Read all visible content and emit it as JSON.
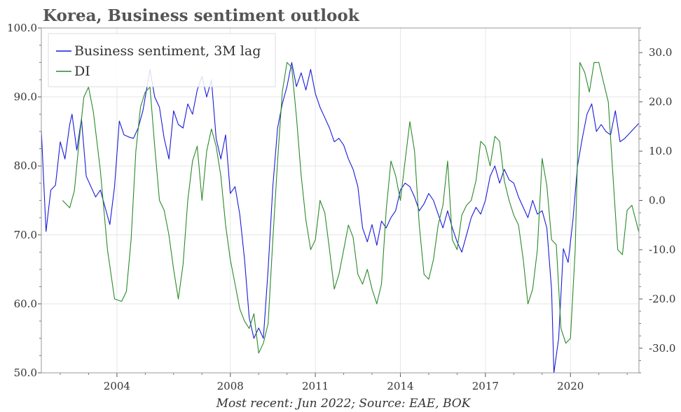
{
  "chart_data": {
    "type": "line",
    "title": "Korea, Business sentiment outlook",
    "footnote": "Most recent: Jun 2022; Source: EAE, BOK",
    "x_range": [
      "2001-05",
      "2022-06"
    ],
    "x_ticks": [
      "2004",
      "2008",
      "2011",
      "2014",
      "2017",
      "2020"
    ],
    "y_left": {
      "range": [
        50,
        100
      ],
      "ticks": [
        "100.0",
        "90.0",
        "80.0",
        "70.0",
        "60.0",
        "50.0"
      ]
    },
    "y_right": {
      "range": [
        -35,
        35
      ],
      "ticks": [
        "30.0",
        "20.0",
        "10.0",
        "0.0",
        "-10.0",
        "-20.0",
        "-30.0"
      ]
    },
    "grid": true,
    "legend_position": "top-left",
    "colors": {
      "business_sentiment": "#1a1adb",
      "di": "#2a8a2a"
    },
    "series": [
      {
        "name": "Business sentiment, 3M lag",
        "axis": "left",
        "color": "#1a1adb",
        "points": [
          [
            "2001-05",
            85.2
          ],
          [
            "2001-07",
            70.5
          ],
          [
            "2001-09",
            76.5
          ],
          [
            "2001-11",
            77.2
          ],
          [
            "2002-01",
            83.5
          ],
          [
            "2002-03",
            81.0
          ],
          [
            "2002-05",
            86.0
          ],
          [
            "2002-06",
            87.5
          ],
          [
            "2002-08",
            82.3
          ],
          [
            "2002-10",
            86.8
          ],
          [
            "2002-12",
            78.5
          ],
          [
            "2003-02",
            77.0
          ],
          [
            "2003-04",
            75.5
          ],
          [
            "2003-06",
            76.5
          ],
          [
            "2003-08",
            74.0
          ],
          [
            "2003-10",
            71.5
          ],
          [
            "2003-12",
            77.0
          ],
          [
            "2004-02",
            86.5
          ],
          [
            "2004-04",
            84.5
          ],
          [
            "2004-06",
            84.2
          ],
          [
            "2004-08",
            84.0
          ],
          [
            "2004-10",
            85.5
          ],
          [
            "2004-12",
            88.0
          ],
          [
            "2005-03",
            94.0
          ],
          [
            "2005-05",
            90.0
          ],
          [
            "2005-07",
            88.5
          ],
          [
            "2005-09",
            84.0
          ],
          [
            "2005-11",
            81.0
          ],
          [
            "2006-01",
            88.0
          ],
          [
            "2006-03",
            86.0
          ],
          [
            "2006-05",
            85.5
          ],
          [
            "2006-07",
            89.0
          ],
          [
            "2006-09",
            87.5
          ],
          [
            "2006-11",
            91.0
          ],
          [
            "2007-01",
            93.0
          ],
          [
            "2007-03",
            90.0
          ],
          [
            "2007-05",
            92.5
          ],
          [
            "2007-07",
            84.0
          ],
          [
            "2007-09",
            81.0
          ],
          [
            "2007-11",
            84.5
          ],
          [
            "2008-01",
            76.0
          ],
          [
            "2008-03",
            77.0
          ],
          [
            "2008-05",
            73.0
          ],
          [
            "2008-07",
            66.5
          ],
          [
            "2008-09",
            58.0
          ],
          [
            "2008-11",
            55.0
          ],
          [
            "2009-01",
            56.5
          ],
          [
            "2009-03",
            55.0
          ],
          [
            "2009-05",
            65.0
          ],
          [
            "2009-07",
            77.0
          ],
          [
            "2009-09",
            85.5
          ],
          [
            "2009-11",
            89.0
          ],
          [
            "2010-01",
            91.5
          ],
          [
            "2010-03",
            95.0
          ],
          [
            "2010-05",
            91.5
          ],
          [
            "2010-07",
            93.5
          ],
          [
            "2010-09",
            91.0
          ],
          [
            "2010-11",
            94.0
          ],
          [
            "2011-01",
            90.5
          ],
          [
            "2011-03",
            88.5
          ],
          [
            "2011-05",
            87.0
          ],
          [
            "2011-07",
            85.5
          ],
          [
            "2011-09",
            83.5
          ],
          [
            "2011-11",
            84.0
          ],
          [
            "2012-01",
            83.0
          ],
          [
            "2012-03",
            81.0
          ],
          [
            "2012-05",
            79.5
          ],
          [
            "2012-07",
            77.0
          ],
          [
            "2012-09",
            71.0
          ],
          [
            "2012-11",
            69.0
          ],
          [
            "2013-01",
            71.5
          ],
          [
            "2013-03",
            68.5
          ],
          [
            "2013-05",
            72.0
          ],
          [
            "2013-07",
            71.0
          ],
          [
            "2013-09",
            72.5
          ],
          [
            "2013-11",
            73.5
          ],
          [
            "2014-01",
            76.5
          ],
          [
            "2014-03",
            77.5
          ],
          [
            "2014-05",
            77.0
          ],
          [
            "2014-07",
            75.5
          ],
          [
            "2014-09",
            73.5
          ],
          [
            "2014-11",
            74.5
          ],
          [
            "2015-01",
            76.0
          ],
          [
            "2015-03",
            75.0
          ],
          [
            "2015-05",
            73.0
          ],
          [
            "2015-07",
            71.0
          ],
          [
            "2015-09",
            73.5
          ],
          [
            "2015-11",
            71.0
          ],
          [
            "2016-01",
            69.0
          ],
          [
            "2016-03",
            67.5
          ],
          [
            "2016-05",
            70.0
          ],
          [
            "2016-07",
            72.5
          ],
          [
            "2016-09",
            74.0
          ],
          [
            "2016-11",
            73.0
          ],
          [
            "2017-01",
            75.0
          ],
          [
            "2017-03",
            78.5
          ],
          [
            "2017-05",
            80.0
          ],
          [
            "2017-07",
            77.5
          ],
          [
            "2017-09",
            79.5
          ],
          [
            "2017-11",
            78.0
          ],
          [
            "2018-01",
            77.5
          ],
          [
            "2018-03",
            75.5
          ],
          [
            "2018-05",
            74.0
          ],
          [
            "2018-07",
            72.5
          ],
          [
            "2018-09",
            75.0
          ],
          [
            "2018-11",
            73.0
          ],
          [
            "2019-01",
            73.5
          ],
          [
            "2019-03",
            71.0
          ],
          [
            "2019-05",
            62.0
          ],
          [
            "2019-06",
            50.0
          ],
          [
            "2019-08",
            55.0
          ],
          [
            "2019-10",
            68.0
          ],
          [
            "2019-12",
            66.0
          ],
          [
            "2020-02",
            72.0
          ],
          [
            "2020-04",
            80.0
          ],
          [
            "2020-06",
            84.0
          ],
          [
            "2020-08",
            87.5
          ],
          [
            "2020-10",
            89.0
          ],
          [
            "2020-12",
            85.0
          ],
          [
            "2021-02",
            86.0
          ],
          [
            "2021-04",
            85.0
          ],
          [
            "2021-06",
            84.5
          ],
          [
            "2021-08",
            88.0
          ],
          [
            "2021-10",
            83.5
          ],
          [
            "2021-12",
            84.0
          ],
          [
            "2022-06",
            86.2
          ]
        ]
      },
      {
        "name": "DI",
        "axis": "right",
        "color": "#2a8a2a",
        "points": [
          [
            "2002-02",
            0.0
          ],
          [
            "2002-05",
            -1.5
          ],
          [
            "2002-07",
            2.0
          ],
          [
            "2002-09",
            12.0
          ],
          [
            "2002-11",
            21.0
          ],
          [
            "2003-01",
            23.0
          ],
          [
            "2003-03",
            18.0
          ],
          [
            "2003-06",
            6.0
          ],
          [
            "2003-09",
            -10.0
          ],
          [
            "2003-12",
            -20.0
          ],
          [
            "2004-03",
            -20.5
          ],
          [
            "2004-05",
            -18.5
          ],
          [
            "2004-07",
            -8.0
          ],
          [
            "2004-09",
            10.0
          ],
          [
            "2004-11",
            19.0
          ],
          [
            "2005-01",
            22.0
          ],
          [
            "2005-03",
            23.0
          ],
          [
            "2005-05",
            11.0
          ],
          [
            "2005-07",
            0.0
          ],
          [
            "2005-09",
            -2.0
          ],
          [
            "2005-11",
            -7.0
          ],
          [
            "2006-01",
            -14.0
          ],
          [
            "2006-03",
            -20.0
          ],
          [
            "2006-05",
            -13.0
          ],
          [
            "2006-07",
            0.0
          ],
          [
            "2006-09",
            8.0
          ],
          [
            "2006-11",
            11.0
          ],
          [
            "2007-01",
            0.0
          ],
          [
            "2007-03",
            10.0
          ],
          [
            "2007-05",
            14.5
          ],
          [
            "2007-07",
            11.0
          ],
          [
            "2007-09",
            5.0
          ],
          [
            "2007-11",
            -5.0
          ],
          [
            "2008-01",
            -12.0
          ],
          [
            "2008-03",
            -17.0
          ],
          [
            "2008-05",
            -22.0
          ],
          [
            "2008-07",
            -24.5
          ],
          [
            "2008-09",
            -26.0
          ],
          [
            "2008-11",
            -23.0
          ],
          [
            "2009-01",
            -31.0
          ],
          [
            "2009-03",
            -29.0
          ],
          [
            "2009-05",
            -25.0
          ],
          [
            "2009-07",
            -8.0
          ],
          [
            "2009-09",
            8.0
          ],
          [
            "2009-11",
            22.0
          ],
          [
            "2010-01",
            28.0
          ],
          [
            "2010-03",
            27.0
          ],
          [
            "2010-05",
            17.0
          ],
          [
            "2010-07",
            5.0
          ],
          [
            "2010-09",
            -4.0
          ],
          [
            "2010-11",
            -10.0
          ],
          [
            "2011-01",
            -8.0
          ],
          [
            "2011-03",
            0.0
          ],
          [
            "2011-05",
            -2.5
          ],
          [
            "2011-07",
            -10.0
          ],
          [
            "2011-09",
            -18.0
          ],
          [
            "2011-11",
            -15.0
          ],
          [
            "2012-01",
            -10.0
          ],
          [
            "2012-03",
            -5.0
          ],
          [
            "2012-05",
            -7.5
          ],
          [
            "2012-07",
            -15.0
          ],
          [
            "2012-09",
            -17.0
          ],
          [
            "2012-11",
            -14.0
          ],
          [
            "2013-01",
            -18.0
          ],
          [
            "2013-03",
            -21.0
          ],
          [
            "2013-05",
            -17.0
          ],
          [
            "2013-07",
            -2.0
          ],
          [
            "2013-09",
            8.0
          ],
          [
            "2013-11",
            5.0
          ],
          [
            "2014-01",
            0.0
          ],
          [
            "2014-03",
            8.0
          ],
          [
            "2014-05",
            16.0
          ],
          [
            "2014-07",
            10.0
          ],
          [
            "2014-09",
            -5.0
          ],
          [
            "2014-11",
            -15.0
          ],
          [
            "2015-01",
            -16.0
          ],
          [
            "2015-03",
            -12.0
          ],
          [
            "2015-05",
            -5.0
          ],
          [
            "2015-07",
            -1.0
          ],
          [
            "2015-09",
            8.0
          ],
          [
            "2015-11",
            -8.0
          ],
          [
            "2016-01",
            -10.0
          ],
          [
            "2016-03",
            -3.0
          ],
          [
            "2016-05",
            -1.0
          ],
          [
            "2016-07",
            0.0
          ],
          [
            "2016-09",
            4.0
          ],
          [
            "2016-11",
            12.0
          ],
          [
            "2017-01",
            11.0
          ],
          [
            "2017-03",
            7.0
          ],
          [
            "2017-05",
            13.0
          ],
          [
            "2017-07",
            12.0
          ],
          [
            "2017-09",
            4.0
          ],
          [
            "2017-11",
            0.0
          ],
          [
            "2018-01",
            -3.0
          ],
          [
            "2018-03",
            -5.0
          ],
          [
            "2018-05",
            -12.0
          ],
          [
            "2018-07",
            -21.0
          ],
          [
            "2018-09",
            -18.0
          ],
          [
            "2018-11",
            -10.0
          ],
          [
            "2019-01",
            8.5
          ],
          [
            "2019-03",
            3.0
          ],
          [
            "2019-05",
            -8.0
          ],
          [
            "2019-07",
            -9.0
          ],
          [
            "2019-09",
            -26.0
          ],
          [
            "2019-11",
            -29.0
          ],
          [
            "2020-01",
            -28.0
          ],
          [
            "2020-03",
            -10.0
          ],
          [
            "2020-05",
            28.0
          ],
          [
            "2020-07",
            26.0
          ],
          [
            "2020-09",
            22.0
          ],
          [
            "2020-11",
            28.0
          ],
          [
            "2021-01",
            28.0
          ],
          [
            "2021-03",
            24.0
          ],
          [
            "2021-05",
            20.0
          ],
          [
            "2021-07",
            5.0
          ],
          [
            "2021-09",
            -10.0
          ],
          [
            "2021-11",
            -11.0
          ],
          [
            "2022-01",
            -2.0
          ],
          [
            "2022-03",
            -1.0
          ],
          [
            "2022-06",
            -6.5
          ]
        ]
      }
    ]
  }
}
